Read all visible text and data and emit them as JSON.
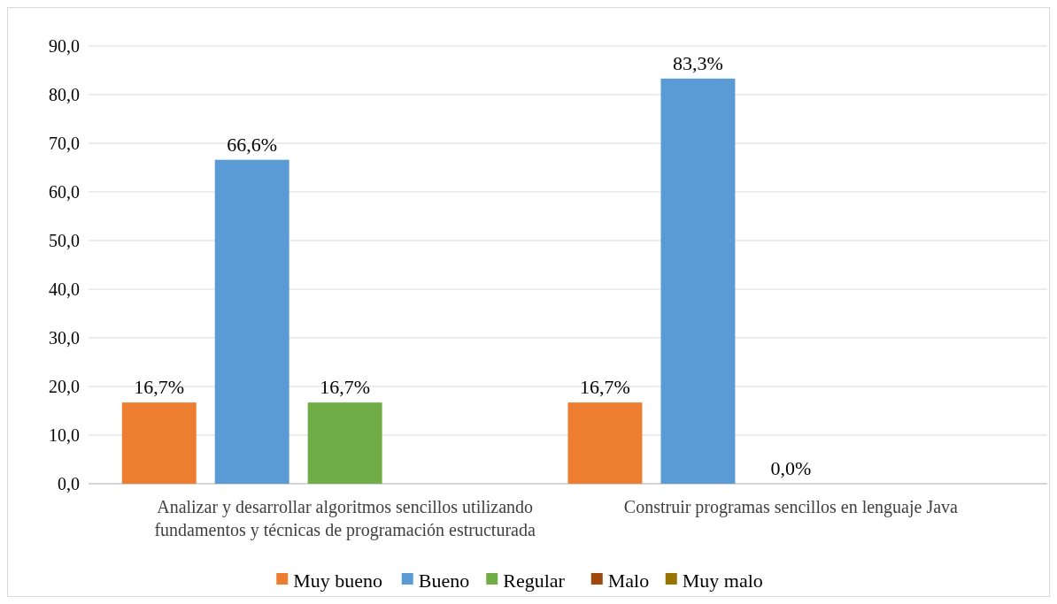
{
  "chart_data": {
    "type": "bar",
    "categories": [
      "Analizar y desarrollar algoritmos sencillos utilizando fundamentos y técnicas de programación estructurada",
      "Construir programas sencillos en lenguaje Java"
    ],
    "series": [
      {
        "name": "Muy bueno",
        "color": "#ed7d31",
        "values": [
          16.7,
          16.7
        ],
        "value_labels": [
          "16,7%",
          "16,7%"
        ]
      },
      {
        "name": "Bueno",
        "color": "#5b9bd5",
        "values": [
          66.6,
          83.3
        ],
        "value_labels": [
          "66,6%",
          "83,3%"
        ]
      },
      {
        "name": "Regular",
        "color": "#70ad47",
        "values": [
          16.7,
          0
        ],
        "value_labels": [
          "16,7%",
          "0,0%"
        ]
      },
      {
        "name": "Malo",
        "color": "#9e480e",
        "values": [
          null,
          null
        ]
      },
      {
        "name": "Muy malo",
        "color": "#997300",
        "values": [
          null,
          null
        ]
      }
    ],
    "ylim": [
      0,
      90
    ],
    "yticks": [
      {
        "value": 0,
        "label": "0,0"
      },
      {
        "value": 10,
        "label": "10,0"
      },
      {
        "value": 20,
        "label": "20,0"
      },
      {
        "value": 30,
        "label": "30,0"
      },
      {
        "value": 40,
        "label": "40,0"
      },
      {
        "value": 50,
        "label": "50,0"
      },
      {
        "value": 60,
        "label": "60,0"
      },
      {
        "value": 70,
        "label": "70,0"
      },
      {
        "value": 80,
        "label": "80,0"
      },
      {
        "value": 90,
        "label": "90,0"
      }
    ],
    "grid": "y",
    "legend": "bottom"
  }
}
